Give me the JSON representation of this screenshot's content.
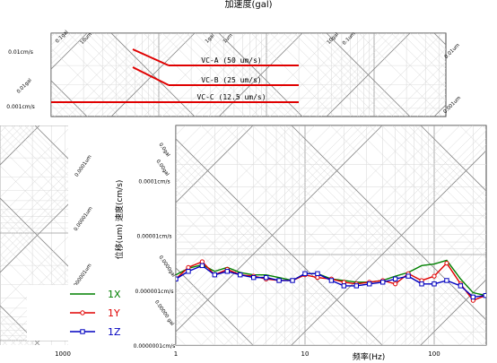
{
  "chart_data": [
    {
      "type": "line",
      "title": "加速度(gal)",
      "x_scale": "log",
      "xlabel": "",
      "ylabel": "",
      "vc_criteria": [
        {
          "label": "VC-A (50 um/s)",
          "value": "50 um/s"
        },
        {
          "label": "VC-B (25 um/s)",
          "value": "25 um/s"
        },
        {
          "label": "VC-C (12.5 um/s)",
          "value": "12.5 um/s"
        }
      ],
      "velocity_tick_labels": [
        "0.01cm/s",
        "0.001cm/s"
      ],
      "diagonal_tick_labels": [
        "0.1gal",
        "10um",
        "1gal",
        "1um",
        "10gal",
        "0.1um",
        "0.01gal",
        "0.01um",
        "0.001um"
      ]
    },
    {
      "type": "line",
      "title": "",
      "x_scale": "log",
      "y_scale": "log",
      "xlabel": "频率(Hz)",
      "ylabel": "位移(um) 速度(cm/s)",
      "xlim": [
        1,
        300
      ],
      "ylim": [
        1e-07,
        0.001
      ],
      "x_tick_labels": [
        "1",
        "10",
        "100"
      ],
      "y_tick_labels": [
        "0.0001cm/s",
        "0.00001cm/s",
        "0.000001cm/s",
        "0.0000001cm/s"
      ],
      "diagonal_tick_labels": [
        "0.0gal",
        "0.00gal",
        "0.0001um",
        "0.00001um",
        "0.0000gal",
        "0.000001um",
        "0.00000 gal"
      ],
      "left_panel_x_tick_label": "1000",
      "x": [
        1,
        1.25,
        1.6,
        2,
        2.5,
        3.15,
        4,
        5,
        6.3,
        8,
        10,
        12.5,
        16,
        20,
        25,
        31.5,
        40,
        50,
        63,
        80,
        100,
        125,
        160,
        200,
        250
      ],
      "series": [
        {
          "name": "1X",
          "color": "#008000",
          "marker": "none",
          "values": [
            1.9e-06,
            2.5e-06,
            2.9e-06,
            2.2e-06,
            2.6e-06,
            2.1e-06,
            1.9e-06,
            1.9e-06,
            1.7e-06,
            1.5e-06,
            2e-06,
            2e-06,
            1.6e-06,
            1.5e-06,
            1.4e-06,
            1.4e-06,
            1.5e-06,
            1.8e-06,
            2.1e-06,
            2.8e-06,
            3e-06,
            3.5e-06,
            1.6e-06,
            9e-07,
            8e-07
          ]
        },
        {
          "name": "1Y",
          "color": "#e00000",
          "marker": "circle",
          "values": [
            1.6e-06,
            2.6e-06,
            3.3e-06,
            1.9e-06,
            2.4e-06,
            1.9e-06,
            1.8e-06,
            1.6e-06,
            1.5e-06,
            1.5e-06,
            1.9e-06,
            1.7e-06,
            1.6e-06,
            1.4e-06,
            1.3e-06,
            1.4e-06,
            1.5e-06,
            1.3e-06,
            2e-06,
            1.5e-06,
            1.8e-06,
            3.1e-06,
            1.3e-06,
            6.5e-07,
            8e-07
          ]
        },
        {
          "name": "1Z",
          "color": "#0000c0",
          "marker": "square",
          "values": [
            1.6e-06,
            2.2e-06,
            2.8e-06,
            1.9e-06,
            2.2e-06,
            1.9e-06,
            1.7e-06,
            1.7e-06,
            1.5e-06,
            1.5e-06,
            2e-06,
            2e-06,
            1.5e-06,
            1.2e-06,
            1.2e-06,
            1.3e-06,
            1.4e-06,
            1.6e-06,
            1.8e-06,
            1.3e-06,
            1.3e-06,
            1.5e-06,
            1.2e-06,
            7.5e-07,
            8e-07
          ]
        }
      ],
      "legend": {
        "placement": "bottom-left",
        "entries": [
          "1X",
          "1Y",
          "1Z"
        ]
      },
      "grid": true
    }
  ]
}
